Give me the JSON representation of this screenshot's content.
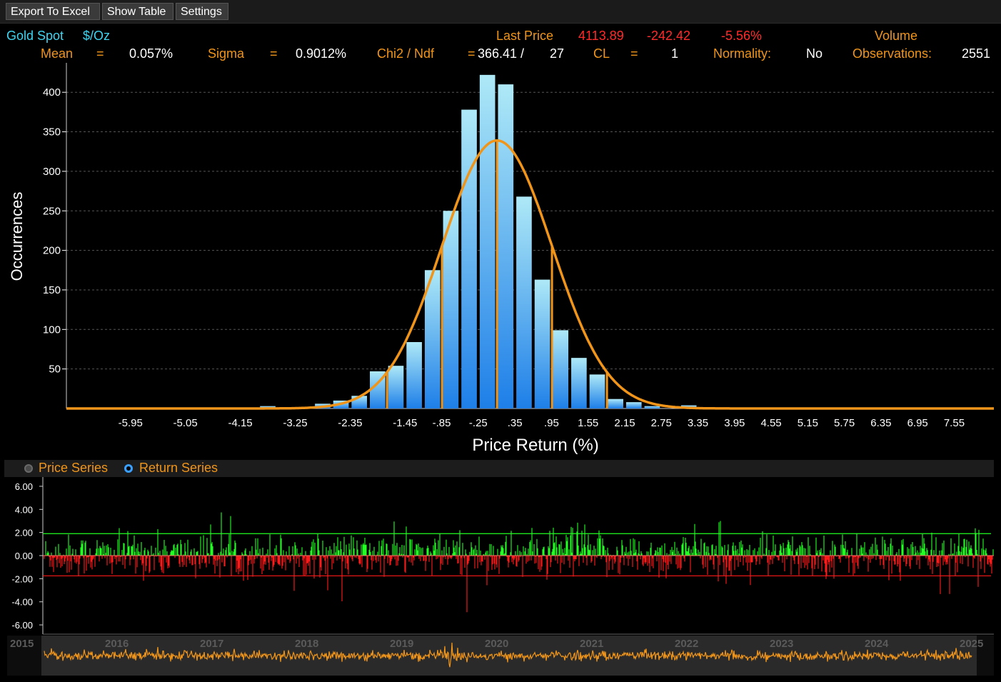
{
  "toolbar": {
    "export_label": "Export To Excel",
    "show_table_label": "Show Table",
    "settings_label": "Settings"
  },
  "header": {
    "security": "Gold Spot",
    "unit": "$/Oz",
    "last_price_label": "Last Price",
    "last_price": "4113.89",
    "change": "-242.42",
    "change_pct": "-5.56%",
    "volume_label": "Volume",
    "mean_label": "Mean",
    "mean_eq": "=",
    "mean_value": "0.057%",
    "sigma_label": "Sigma",
    "sigma_eq": "=",
    "sigma_value": "0.9012%",
    "chi_label": "Chi2 / Ndf",
    "chi_eq": "=",
    "chi_value": "366.41 /",
    "ndf_value": "27",
    "cl_label": "CL",
    "cl_eq": "=",
    "cl_value": "1",
    "normality_label": "Normality:",
    "normality_value": "No",
    "observations_label": "Observations:",
    "observations_value": "2551"
  },
  "series_toggle": {
    "price_label": "Price Series",
    "return_label": "Return Series",
    "selected": "Return Series"
  },
  "colors": {
    "bar_top": "#aee9f7",
    "bar_bottom": "#1e7fe8",
    "fit_curve": "#f0951a",
    "positive": "#22ff22",
    "negative": "#ff1a1a",
    "price_line": "#f0951a"
  },
  "chart_data": [
    {
      "type": "bar",
      "xlabel": "Price Return (%)",
      "ylabel": "Occurrences",
      "x_tick_labels": [
        "-5.95",
        "-5.05",
        "-4.15",
        "-3.25",
        "-2.35",
        "-1.45",
        "-.85",
        "-.25",
        ".35",
        ".95",
        "1.55",
        "2.15",
        "2.75",
        "3.35",
        "3.95",
        "4.55",
        "5.15",
        "5.75",
        "6.35",
        "6.95",
        "7.55"
      ],
      "y_ticks": [
        50,
        100,
        150,
        200,
        250,
        300,
        350,
        400
      ],
      "ylim": [
        0,
        430
      ],
      "xlim": [
        -7.0,
        8.2
      ],
      "grid": "horizontal dashed",
      "bin_width": 0.3,
      "bins": [
        {
          "x": -3.7,
          "value": 3
        },
        {
          "x": -2.8,
          "value": 6
        },
        {
          "x": -2.5,
          "value": 10
        },
        {
          "x": -2.2,
          "value": 16
        },
        {
          "x": -1.9,
          "value": 47
        },
        {
          "x": -1.6,
          "value": 54
        },
        {
          "x": -1.3,
          "value": 84
        },
        {
          "x": -1.0,
          "value": 175
        },
        {
          "x": -0.7,
          "value": 250
        },
        {
          "x": -0.4,
          "value": 378
        },
        {
          "x": -0.1,
          "value": 422
        },
        {
          "x": 0.2,
          "value": 410
        },
        {
          "x": 0.5,
          "value": 268
        },
        {
          "x": 0.8,
          "value": 163
        },
        {
          "x": 1.1,
          "value": 99
        },
        {
          "x": 1.4,
          "value": 64
        },
        {
          "x": 1.7,
          "value": 43
        },
        {
          "x": 2.0,
          "value": 12
        },
        {
          "x": 2.3,
          "value": 8
        },
        {
          "x": 2.6,
          "value": 3
        },
        {
          "x": 3.2,
          "value": 4
        }
      ],
      "fit": {
        "type": "normal",
        "mean": 0.057,
        "sigma": 0.9012,
        "peak": 339
      },
      "markers_x": [
        -1.745,
        -0.844,
        0.057,
        0.958,
        1.859
      ]
    },
    {
      "type": "bar",
      "series": [
        {
          "name": "Return Series",
          "values_generated": true
        }
      ],
      "y_tick_labels": [
        "6.00",
        "4.00",
        "2.00",
        "0.00",
        "-2.00",
        "-4.00",
        "-6.00"
      ],
      "ylim": [
        -6.8,
        6.8
      ],
      "thresholds": [
        1.9,
        -1.75
      ],
      "x_tick_labels": [
        "2015",
        "2016",
        "2017",
        "2018",
        "2019",
        "2020",
        "2021",
        "2022",
        "2023",
        "2024",
        "2025"
      ]
    }
  ]
}
